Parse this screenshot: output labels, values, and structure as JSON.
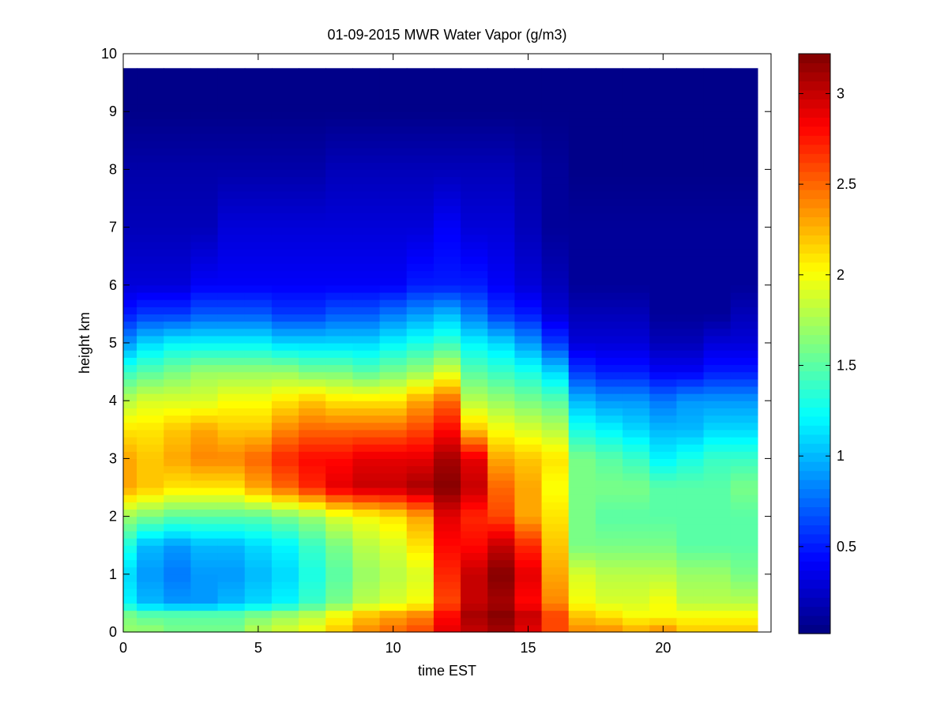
{
  "chart_data": {
    "type": "heatmap",
    "title": "01-09-2015 MWR Water Vapor (g/m3)",
    "xlabel": "time EST",
    "ylabel": "height km",
    "xlim": [
      0,
      24
    ],
    "ylim": [
      0,
      10
    ],
    "x_ticks": [
      "0",
      "5",
      "10",
      "15",
      "20"
    ],
    "y_ticks": [
      "0",
      "1",
      "2",
      "3",
      "4",
      "5",
      "6",
      "7",
      "8",
      "9",
      "10"
    ],
    "colormap": "jet",
    "color_range": [
      0.02,
      3.22
    ],
    "colorbar_ticks": [
      "0.5",
      "1",
      "1.5",
      "2",
      "2.5",
      "3"
    ],
    "x_centers": [
      0.0,
      1.0,
      2.0,
      3.0,
      4.0,
      5.0,
      6.0,
      7.0,
      8.0,
      9.0,
      10.0,
      11.0,
      12.0,
      13.0,
      14.0,
      15.0,
      16.0,
      17.0,
      18.0,
      19.0,
      20.0,
      21.0,
      22.0,
      23.0
    ],
    "heights": [
      0.0,
      0.3,
      0.5,
      1.0,
      1.5,
      2.0,
      2.5,
      3.0,
      3.5,
      4.0,
      4.5,
      5.0,
      5.5,
      6.0,
      7.0,
      8.0,
      9.0,
      9.75
    ],
    "values": [
      [
        1.7,
        1.7,
        1.6,
        1.6,
        1.6,
        1.8,
        1.9,
        2.0,
        2.2,
        2.4,
        2.5,
        2.6,
        2.9,
        3.0,
        3.1,
        2.9,
        2.6,
        2.4,
        2.4,
        2.3,
        2.4,
        2.2,
        2.2,
        2.2
      ],
      [
        1.6,
        1.5,
        1.5,
        1.5,
        1.5,
        1.6,
        1.7,
        1.8,
        2.0,
        2.2,
        2.3,
        2.4,
        2.8,
        3.1,
        3.2,
        3.0,
        2.6,
        2.2,
        2.1,
        2.0,
        2.0,
        2.0,
        2.0,
        2.0
      ],
      [
        1.2,
        1.0,
        0.9,
        0.9,
        1.0,
        1.1,
        1.2,
        1.4,
        1.6,
        1.8,
        1.9,
        2.0,
        2.6,
        3.0,
        3.1,
        2.8,
        2.4,
        2.0,
        1.9,
        1.9,
        2.0,
        1.8,
        1.8,
        1.8
      ],
      [
        1.1,
        0.9,
        0.8,
        0.9,
        0.9,
        1.0,
        1.1,
        1.3,
        1.5,
        1.7,
        1.8,
        1.9,
        2.7,
        3.0,
        3.2,
        2.9,
        2.3,
        1.9,
        1.8,
        1.8,
        1.8,
        1.7,
        1.7,
        1.6
      ],
      [
        1.3,
        1.0,
        0.9,
        1.0,
        1.0,
        1.1,
        1.2,
        1.4,
        1.6,
        1.8,
        1.9,
        2.1,
        2.8,
        2.8,
        3.0,
        2.7,
        2.2,
        1.6,
        1.6,
        1.6,
        1.6,
        1.5,
        1.5,
        1.5
      ],
      [
        1.7,
        1.6,
        1.5,
        1.5,
        1.5,
        1.5,
        1.6,
        1.7,
        1.9,
        2.0,
        2.1,
        2.3,
        2.9,
        2.7,
        2.6,
        2.3,
        2.1,
        1.6,
        1.5,
        1.5,
        1.5,
        1.5,
        1.5,
        1.5
      ],
      [
        2.3,
        2.2,
        2.1,
        2.1,
        2.1,
        2.3,
        2.5,
        2.7,
        2.9,
        3.0,
        3.0,
        3.1,
        3.2,
        3.0,
        2.5,
        2.3,
        2.0,
        1.6,
        1.6,
        1.6,
        1.5,
        1.5,
        1.5,
        1.6
      ],
      [
        2.3,
        2.2,
        2.3,
        2.4,
        2.4,
        2.5,
        2.7,
        2.8,
        2.8,
        2.9,
        2.9,
        2.9,
        3.1,
        2.9,
        2.3,
        2.2,
        2.1,
        1.6,
        1.5,
        1.4,
        1.2,
        1.3,
        1.4,
        1.4
      ],
      [
        2.1,
        2.1,
        2.2,
        2.3,
        2.2,
        2.2,
        2.4,
        2.5,
        2.5,
        2.5,
        2.5,
        2.6,
        2.8,
        2.2,
        2.0,
        1.9,
        1.8,
        1.3,
        1.2,
        1.1,
        1.0,
        1.0,
        1.1,
        1.1
      ],
      [
        1.8,
        1.9,
        1.9,
        1.9,
        2.0,
        2.0,
        2.1,
        2.2,
        2.1,
        2.1,
        2.1,
        2.3,
        2.5,
        1.8,
        1.7,
        1.6,
        1.5,
        1.0,
        0.9,
        0.9,
        0.8,
        0.9,
        0.9,
        0.9
      ],
      [
        1.4,
        1.5,
        1.6,
        1.7,
        1.7,
        1.7,
        1.7,
        1.6,
        1.6,
        1.5,
        1.6,
        1.7,
        1.9,
        1.5,
        1.4,
        1.3,
        1.1,
        0.6,
        0.5,
        0.5,
        0.4,
        0.4,
        0.5,
        0.5
      ],
      [
        0.9,
        1.1,
        1.2,
        1.2,
        1.2,
        1.2,
        1.1,
        1.1,
        1.1,
        1.1,
        1.2,
        1.3,
        1.4,
        1.2,
        1.1,
        0.9,
        0.6,
        0.3,
        0.3,
        0.3,
        0.2,
        0.2,
        0.3,
        0.3
      ],
      [
        0.5,
        0.6,
        0.6,
        0.7,
        0.7,
        0.7,
        0.6,
        0.6,
        0.7,
        0.7,
        0.8,
        0.9,
        1.0,
        0.8,
        0.6,
        0.5,
        0.3,
        0.2,
        0.2,
        0.2,
        0.1,
        0.1,
        0.1,
        0.2
      ],
      [
        0.3,
        0.3,
        0.3,
        0.4,
        0.4,
        0.4,
        0.4,
        0.4,
        0.4,
        0.4,
        0.4,
        0.5,
        0.5,
        0.5,
        0.4,
        0.3,
        0.2,
        0.1,
        0.1,
        0.1,
        0.1,
        0.1,
        0.1,
        0.1
      ],
      [
        0.2,
        0.2,
        0.2,
        0.2,
        0.3,
        0.3,
        0.3,
        0.3,
        0.3,
        0.3,
        0.3,
        0.3,
        0.4,
        0.3,
        0.3,
        0.2,
        0.1,
        0.1,
        0.1,
        0.1,
        0.1,
        0.1,
        0.1,
        0.1
      ],
      [
        0.15,
        0.15,
        0.15,
        0.15,
        0.15,
        0.15,
        0.15,
        0.15,
        0.2,
        0.2,
        0.2,
        0.2,
        0.2,
        0.2,
        0.2,
        0.15,
        0.1,
        0.05,
        0.05,
        0.05,
        0.05,
        0.05,
        0.05,
        0.05
      ],
      [
        0.05,
        0.05,
        0.05,
        0.05,
        0.05,
        0.05,
        0.05,
        0.05,
        0.05,
        0.05,
        0.05,
        0.05,
        0.05,
        0.05,
        0.05,
        0.05,
        0.05,
        0.05,
        0.05,
        0.05,
        0.05,
        0.05,
        0.05,
        0.05
      ],
      [
        0.05,
        0.05,
        0.05,
        0.05,
        0.05,
        0.05,
        0.05,
        0.05,
        0.05,
        0.05,
        0.05,
        0.05,
        0.05,
        0.05,
        0.05,
        0.05,
        0.05,
        0.05,
        0.05,
        0.05,
        0.05,
        0.05,
        0.05,
        0.05
      ]
    ]
  }
}
